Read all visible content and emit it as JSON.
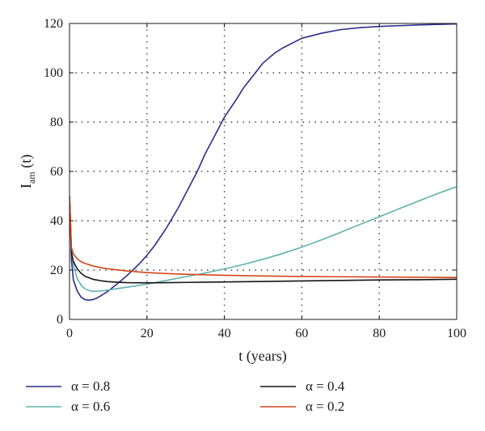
{
  "chart_data": {
    "type": "line",
    "title": "",
    "xlabel": "t (years)",
    "ylabel": {
      "main": "I",
      "sub": "am",
      "suffix": " (t)"
    },
    "xlim": [
      0,
      100
    ],
    "ylim": [
      0,
      120
    ],
    "xticks": [
      0,
      20,
      40,
      60,
      80,
      100
    ],
    "yticks": [
      0,
      20,
      40,
      60,
      80,
      100,
      120
    ],
    "grid": true,
    "legend_position": "bottom",
    "series": [
      {
        "name": "α = 0.8",
        "color": "#2b2c8c",
        "x": [
          0,
          0.5,
          1,
          2,
          3,
          4,
          5,
          6,
          7,
          8,
          10,
          12,
          15,
          18,
          20,
          22,
          25,
          28,
          30,
          33,
          35,
          38,
          40,
          43,
          45,
          48,
          50,
          53,
          55,
          60,
          65,
          70,
          75,
          80,
          85,
          90,
          95,
          100
        ],
        "y": [
          50,
          24,
          16,
          11.5,
          9,
          8,
          7.8,
          8,
          8.6,
          9.5,
          11.5,
          14,
          18,
          22.5,
          26,
          30,
          37,
          45,
          51,
          60,
          67,
          76,
          82,
          89,
          94,
          100,
          104,
          108,
          110,
          114,
          116,
          117.5,
          118.3,
          118.8,
          119.1,
          119.4,
          119.6,
          119.8
        ]
      },
      {
        "name": "α = 0.6",
        "color": "#5fb2ad",
        "x": [
          0,
          0.5,
          1,
          2,
          3,
          4,
          5,
          6,
          8,
          10,
          12,
          15,
          20,
          25,
          30,
          35,
          40,
          45,
          50,
          55,
          60,
          65,
          70,
          75,
          80,
          85,
          90,
          95,
          100
        ],
        "y": [
          50,
          28,
          22,
          16.5,
          13.8,
          12.4,
          11.7,
          11.4,
          11.5,
          11.9,
          12.4,
          13.1,
          14.3,
          15.8,
          17.3,
          18.8,
          20.5,
          22.3,
          24.4,
          26.7,
          29.3,
          32.2,
          35.3,
          38.5,
          41.6,
          44.8,
          47.9,
          51,
          53.8
        ]
      },
      {
        "name": "α = 0.4",
        "color": "#151515",
        "x": [
          0,
          0.5,
          1,
          2,
          3,
          4,
          6,
          8,
          10,
          12,
          15,
          20,
          25,
          30,
          40,
          50,
          60,
          70,
          80,
          90,
          100
        ],
        "y": [
          50,
          27,
          23.5,
          20.5,
          18.7,
          17.5,
          16.3,
          15.7,
          15.3,
          15.1,
          14.9,
          14.8,
          14.9,
          15,
          15.2,
          15.4,
          15.6,
          15.8,
          16,
          16.1,
          16.3
        ]
      },
      {
        "name": "α = 0.2",
        "color": "#d4451c",
        "x": [
          0,
          0.5,
          1,
          2,
          3,
          4,
          6,
          8,
          10,
          15,
          20,
          25,
          30,
          40,
          50,
          60,
          70,
          80,
          90,
          100
        ],
        "y": [
          50,
          29,
          26.5,
          24.5,
          23.4,
          22.7,
          21.7,
          21,
          20.5,
          19.6,
          19,
          18.6,
          18.3,
          17.9,
          17.6,
          17.4,
          17.3,
          17.2,
          17.1,
          17
        ]
      }
    ]
  }
}
